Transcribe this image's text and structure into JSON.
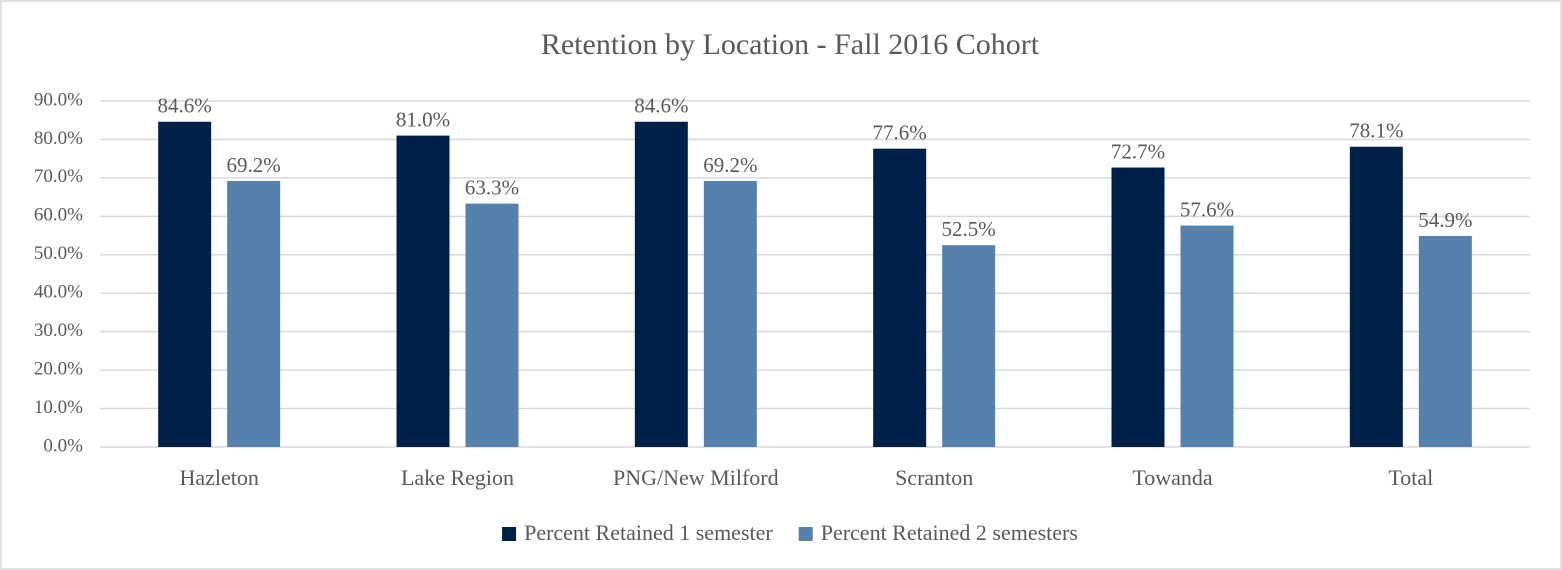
{
  "chart_data": {
    "type": "bar",
    "title": "Retention by Location - Fall 2016 Cohort",
    "categories": [
      "Hazleton",
      "Lake Region",
      "PNG/New Milford",
      "Scranton",
      "Towanda",
      "Total"
    ],
    "series": [
      {
        "name": "Percent Retained 1 semester",
        "color": "#002147",
        "values": [
          84.6,
          81.0,
          84.6,
          77.6,
          72.7,
          78.1
        ],
        "value_labels": [
          "84.6%",
          "81.0%",
          "84.6%",
          "77.6%",
          "72.7%",
          "78.1%"
        ]
      },
      {
        "name": "Percent Retained 2 semesters",
        "color": "#5482ad",
        "values": [
          69.2,
          63.3,
          69.2,
          52.5,
          57.6,
          54.9
        ],
        "value_labels": [
          "69.2%",
          "63.3%",
          "69.2%",
          "52.5%",
          "57.6%",
          "54.9%"
        ]
      }
    ],
    "ylim": [
      0,
      90
    ],
    "yticks": [
      {
        "value": 0,
        "label": "0.0%"
      },
      {
        "value": 10,
        "label": "10.0%"
      },
      {
        "value": 20,
        "label": "20.0%"
      },
      {
        "value": 30,
        "label": "30.0%"
      },
      {
        "value": 40,
        "label": "40.0%"
      },
      {
        "value": 50,
        "label": "50.0%"
      },
      {
        "value": 60,
        "label": "60.0%"
      },
      {
        "value": 70,
        "label": "70.0%"
      },
      {
        "value": 80,
        "label": "80.0%"
      },
      {
        "value": 90,
        "label": "90.0%"
      }
    ],
    "grid": true,
    "legend": "bottom"
  }
}
